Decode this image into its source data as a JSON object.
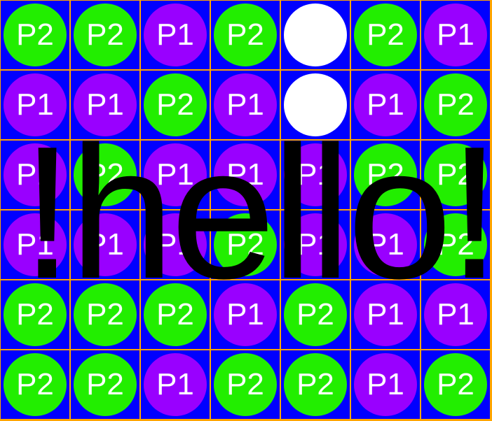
{
  "colors": {
    "board_background": "#0000ff",
    "grid_lines": "#ffa500",
    "p1": "#9900ff",
    "p2": "#22ee00",
    "empty": "#ffffff",
    "disc_text": "#ffffff",
    "overlay_text": "#000000"
  },
  "board": {
    "rows": [
      [
        "P2",
        "P2",
        "P1",
        "P2",
        "",
        "P2",
        "P1"
      ],
      [
        "P1",
        "P1",
        "P2",
        "P1",
        "",
        "P1",
        "P2"
      ],
      [
        "P1",
        "P2",
        "P1",
        "P1",
        "P1",
        "P2",
        "P2"
      ],
      [
        "P1",
        "P1",
        "P1",
        "P2",
        "P1",
        "P1",
        "P2"
      ],
      [
        "P2",
        "P2",
        "P2",
        "P1",
        "P2",
        "P1",
        "P1"
      ],
      [
        "P2",
        "P2",
        "P1",
        "P2",
        "P2",
        "P1",
        "P2"
      ]
    ]
  },
  "overlay": {
    "text": "!hello!"
  }
}
